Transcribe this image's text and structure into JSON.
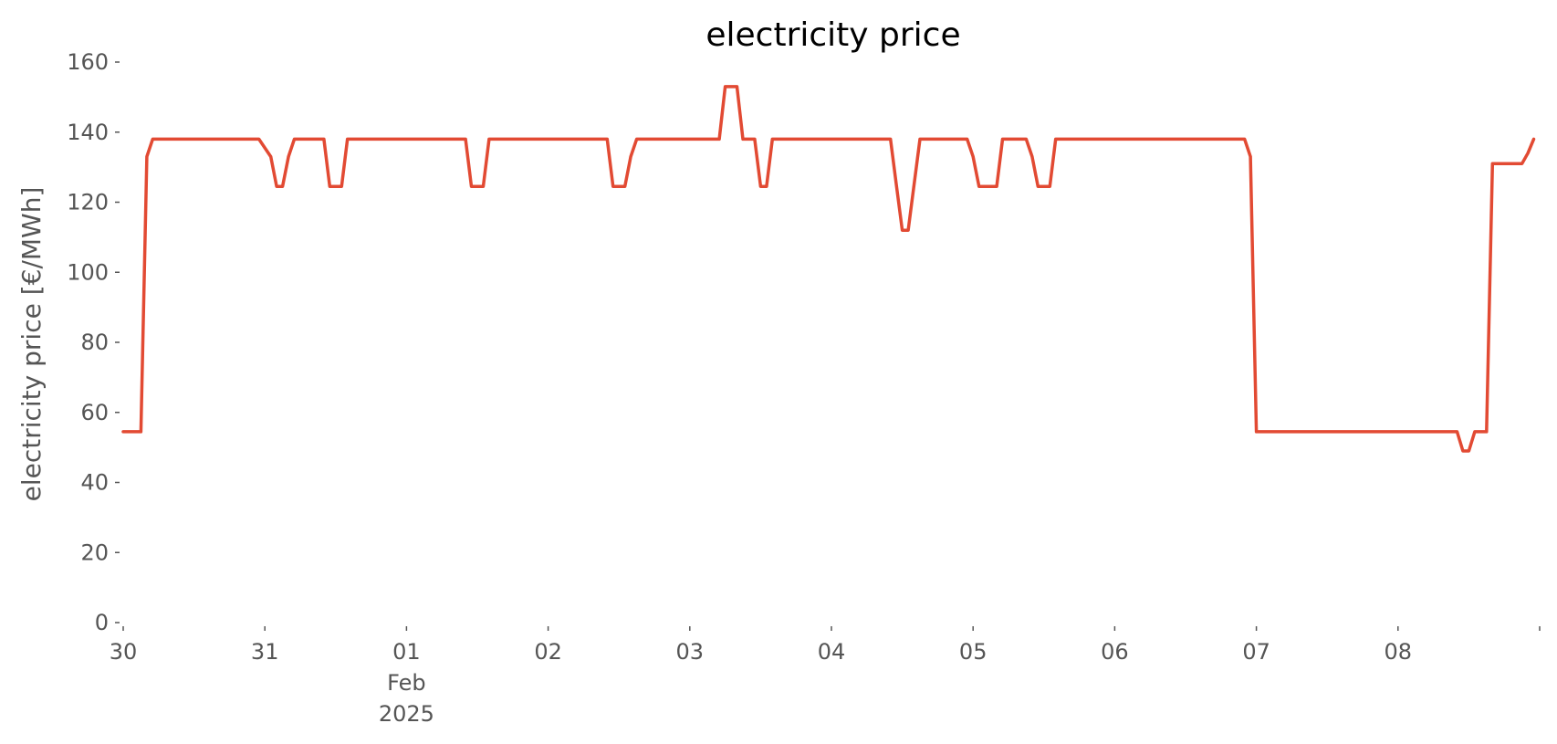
{
  "chart_data": {
    "type": "line",
    "title": "electricity price",
    "xlabel": "",
    "ylabel": "electricity price [€/MWh]",
    "ylim": [
      0,
      160
    ],
    "xlim": [
      "2025-01-30T00:00",
      "2025-02-08T23:00"
    ],
    "grid": false,
    "line_color": "#E24A33",
    "y_ticks": [
      0,
      20,
      40,
      60,
      80,
      100,
      120,
      140,
      160
    ],
    "x_ticks": [
      {
        "at": "2025-01-30T00:00",
        "label": "30"
      },
      {
        "at": "2025-01-31T00:00",
        "label": "31"
      },
      {
        "at": "2025-02-01T00:00",
        "label": "01",
        "label2": "Feb",
        "label3": "2025"
      },
      {
        "at": "2025-02-02T00:00",
        "label": "02"
      },
      {
        "at": "2025-02-03T00:00",
        "label": "03"
      },
      {
        "at": "2025-02-04T00:00",
        "label": "04"
      },
      {
        "at": "2025-02-05T00:00",
        "label": "05"
      },
      {
        "at": "2025-02-06T00:00",
        "label": "06"
      },
      {
        "at": "2025-02-07T00:00",
        "label": "07"
      },
      {
        "at": "2025-02-08T00:00",
        "label": "08"
      },
      {
        "at": "2025-02-09T00:00",
        "label": ""
      }
    ],
    "series": [
      {
        "name": "",
        "points": [
          [
            "2025-01-30T00:00",
            54.5
          ],
          [
            "2025-01-30T03:00",
            54.5
          ],
          [
            "2025-01-30T04:00",
            133
          ],
          [
            "2025-01-30T05:00",
            138
          ],
          [
            "2025-01-30T23:00",
            138
          ],
          [
            "2025-01-31T01:00",
            133
          ],
          [
            "2025-01-31T02:00",
            124.5
          ],
          [
            "2025-01-31T03:00",
            124.5
          ],
          [
            "2025-01-31T04:00",
            133
          ],
          [
            "2025-01-31T05:00",
            138
          ],
          [
            "2025-01-31T10:00",
            138
          ],
          [
            "2025-01-31T11:00",
            124.5
          ],
          [
            "2025-01-31T13:00",
            124.5
          ],
          [
            "2025-01-31T14:00",
            138
          ],
          [
            "2025-02-01T10:00",
            138
          ],
          [
            "2025-02-01T11:00",
            124.5
          ],
          [
            "2025-02-01T13:00",
            124.5
          ],
          [
            "2025-02-01T14:00",
            138
          ],
          [
            "2025-02-02T10:00",
            138
          ],
          [
            "2025-02-02T11:00",
            124.5
          ],
          [
            "2025-02-02T13:00",
            124.5
          ],
          [
            "2025-02-02T14:00",
            133
          ],
          [
            "2025-02-02T15:00",
            138
          ],
          [
            "2025-02-03T05:00",
            138
          ],
          [
            "2025-02-03T06:00",
            153
          ],
          [
            "2025-02-03T08:00",
            153
          ],
          [
            "2025-02-03T09:00",
            138
          ],
          [
            "2025-02-03T11:00",
            138
          ],
          [
            "2025-02-03T12:00",
            124.5
          ],
          [
            "2025-02-03T13:00",
            124.5
          ],
          [
            "2025-02-03T14:00",
            138
          ],
          [
            "2025-02-04T10:00",
            138
          ],
          [
            "2025-02-04T11:00",
            125
          ],
          [
            "2025-02-04T12:00",
            112
          ],
          [
            "2025-02-04T13:00",
            112
          ],
          [
            "2025-02-04T15:00",
            138
          ],
          [
            "2025-02-04T23:00",
            138
          ],
          [
            "2025-02-05T00:00",
            133
          ],
          [
            "2025-02-05T01:00",
            124.5
          ],
          [
            "2025-02-05T04:00",
            124.5
          ],
          [
            "2025-02-05T05:00",
            138
          ],
          [
            "2025-02-05T09:00",
            138
          ],
          [
            "2025-02-05T10:00",
            133
          ],
          [
            "2025-02-05T11:00",
            124.5
          ],
          [
            "2025-02-05T13:00",
            124.5
          ],
          [
            "2025-02-05T14:00",
            138
          ],
          [
            "2025-02-06T22:00",
            138
          ],
          [
            "2025-02-06T23:00",
            133
          ],
          [
            "2025-02-07T00:00",
            54.5
          ],
          [
            "2025-02-08T10:00",
            54.5
          ],
          [
            "2025-02-08T11:00",
            49
          ],
          [
            "2025-02-08T12:00",
            49
          ],
          [
            "2025-02-08T13:00",
            54.5
          ],
          [
            "2025-02-08T15:00",
            54.5
          ],
          [
            "2025-02-08T16:00",
            131
          ],
          [
            "2025-02-08T21:00",
            131
          ],
          [
            "2025-02-08T22:00",
            134
          ],
          [
            "2025-02-08T23:00",
            138
          ]
        ]
      }
    ]
  }
}
